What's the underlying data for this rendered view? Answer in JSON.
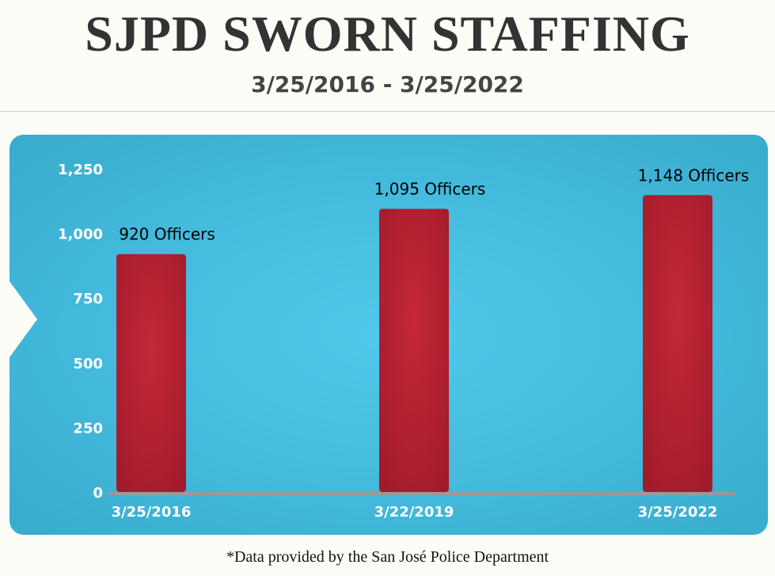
{
  "header": {
    "title": "SJPD SWORN STAFFING",
    "subtitle": "3/25/2016 - 3/25/2022"
  },
  "footnote": "*Data provided by the San José Police Department",
  "chart_data": {
    "type": "bar",
    "categories": [
      "3/25/2016",
      "3/22/2019",
      "3/25/2022"
    ],
    "values": [
      920,
      1095,
      1148
    ],
    "data_labels": [
      "920 Officers",
      "1,095 Officers",
      "1,148 Officers"
    ],
    "yticks": [
      0,
      250,
      500,
      750,
      1000,
      1250
    ],
    "ytick_labels": [
      "0",
      "250",
      "500",
      "750",
      "1,000",
      "1,250"
    ],
    "ylim": [
      0,
      1250
    ],
    "grid": false,
    "colors": {
      "bar": "#b01f30",
      "background": "#45bddf",
      "axis": "#9a9a9a"
    }
  }
}
